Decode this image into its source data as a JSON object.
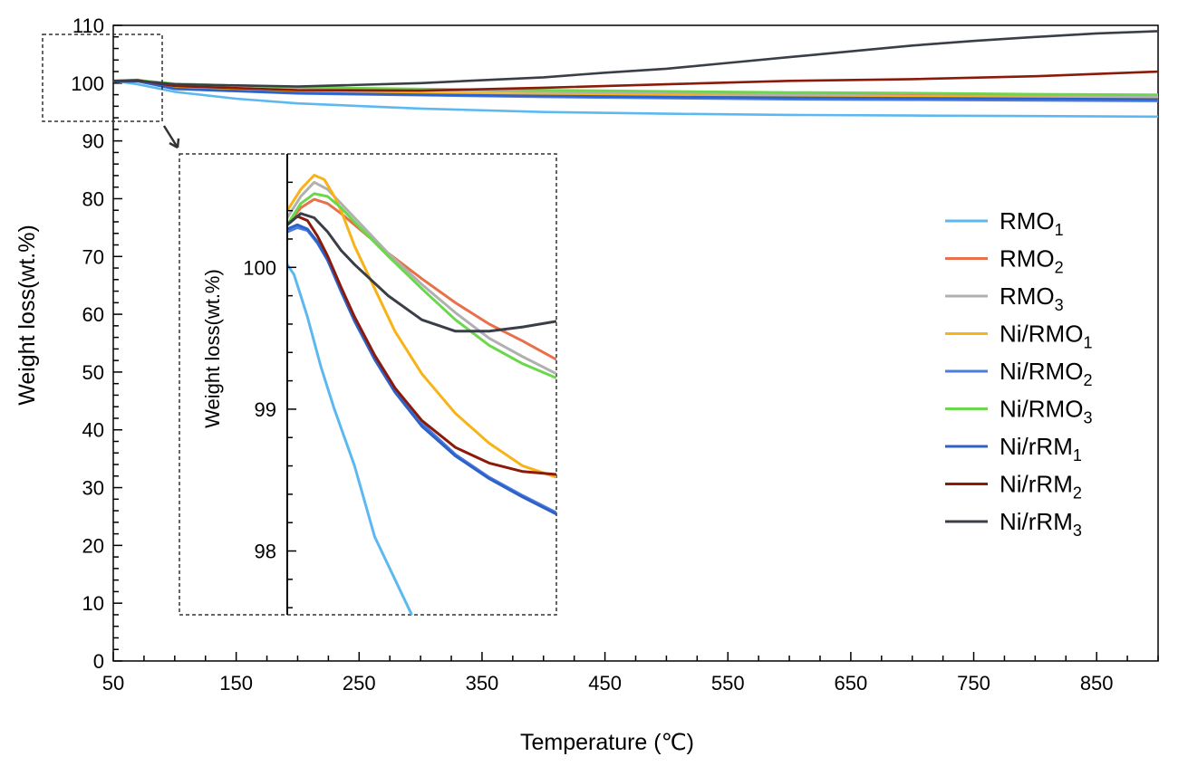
{
  "chart_data": [
    {
      "type": "line",
      "title": "",
      "xlabel": "Temperature (℃)",
      "ylabel": "Weight loss(wt.%)",
      "xlim": [
        50,
        900
      ],
      "ylim": [
        0,
        110
      ],
      "xticks": [
        50,
        150,
        250,
        350,
        450,
        550,
        650,
        750,
        850
      ],
      "yticks": [
        0,
        10,
        20,
        30,
        40,
        50,
        60,
        70,
        80,
        90,
        100,
        110
      ],
      "grid": false,
      "legend_position": "right",
      "series": [
        {
          "name": "RMO",
          "subscript": "1",
          "color": "#5cb8f0",
          "x": [
            50,
            70,
            100,
            150,
            200,
            300,
            400,
            500,
            600,
            700,
            800,
            900
          ],
          "y": [
            100.4,
            99.8,
            98.5,
            97.3,
            96.5,
            95.6,
            95.0,
            94.7,
            94.5,
            94.4,
            94.3,
            94.2
          ]
        },
        {
          "name": "RMO",
          "subscript": "2",
          "color": "#e8704a",
          "x": [
            50,
            70,
            100,
            200,
            300,
            400,
            500,
            600,
            700,
            800,
            900
          ],
          "y": [
            100.4,
            100.5,
            99.9,
            99.3,
            98.9,
            98.6,
            98.3,
            98.1,
            97.9,
            97.8,
            97.7
          ]
        },
        {
          "name": "RMO",
          "subscript": "3",
          "color": "#b0b0b0",
          "x": [
            50,
            70,
            100,
            200,
            300,
            400,
            500,
            600,
            700,
            800,
            900
          ],
          "y": [
            100.4,
            100.5,
            99.9,
            99.2,
            98.8,
            98.5,
            98.2,
            98.0,
            97.8,
            97.7,
            97.6
          ]
        },
        {
          "name": "Ni/RMO",
          "subscript": "1",
          "color": "#f7b317",
          "x": [
            50,
            70,
            100,
            200,
            300,
            400,
            500,
            600,
            700,
            800,
            900
          ],
          "y": [
            100.4,
            100.6,
            99.3,
            98.6,
            98.3,
            98.1,
            97.9,
            97.7,
            97.6,
            97.5,
            97.4
          ]
        },
        {
          "name": "Ni/RMO",
          "subscript": "2",
          "color": "#4a7de0",
          "x": [
            50,
            70,
            100,
            200,
            300,
            400,
            500,
            600,
            700,
            800,
            900
          ],
          "y": [
            100.3,
            100.4,
            99.0,
            98.2,
            97.9,
            97.6,
            97.4,
            97.2,
            97.1,
            97.0,
            96.9
          ]
        },
        {
          "name": "Ni/RMO",
          "subscript": "3",
          "color": "#6ad84a",
          "x": [
            50,
            70,
            100,
            200,
            300,
            400,
            500,
            600,
            700,
            800,
            900
          ],
          "y": [
            100.4,
            100.5,
            99.9,
            99.3,
            99.0,
            98.8,
            98.6,
            98.4,
            98.3,
            98.1,
            98.0
          ]
        },
        {
          "name": "Ni/rRM",
          "subscript": "1",
          "color": "#2e62c8",
          "x": [
            50,
            70,
            100,
            200,
            300,
            400,
            500,
            600,
            700,
            800,
            900
          ],
          "y": [
            100.3,
            100.3,
            99.0,
            98.3,
            98.0,
            97.8,
            97.6,
            97.5,
            97.4,
            97.3,
            97.2
          ]
        },
        {
          "name": "Ni/rRM",
          "subscript": "2",
          "color": "#8b1a0a",
          "x": [
            50,
            70,
            100,
            200,
            300,
            400,
            500,
            600,
            700,
            800,
            900
          ],
          "y": [
            100.4,
            100.5,
            99.5,
            98.8,
            98.7,
            99.2,
            99.8,
            100.4,
            100.7,
            101.2,
            102.0
          ]
        },
        {
          "name": "Ni/rRM",
          "subscript": "3",
          "color": "#3a3f47",
          "x": [
            50,
            70,
            100,
            200,
            300,
            400,
            450,
            500,
            550,
            600,
            650,
            700,
            750,
            800,
            850,
            900
          ],
          "y": [
            100.4,
            100.4,
            99.8,
            99.4,
            100.0,
            101.0,
            101.8,
            102.5,
            103.5,
            104.5,
            105.5,
            106.5,
            107.3,
            108.0,
            108.6,
            109.0
          ]
        }
      ]
    },
    {
      "type": "line",
      "title": "",
      "xlabel": "",
      "ylabel": "Weight loss(wt.%)",
      "xlim": [
        50,
        90
      ],
      "ylim": [
        97.55,
        100.8
      ],
      "yticks": [
        98,
        99,
        100
      ],
      "grid": false,
      "series": [
        {
          "name": "RMO",
          "subscript": "1",
          "color": "#5cb8f0",
          "x": [
            50,
            51,
            52,
            53,
            55,
            57,
            60,
            63,
            66,
            68.5
          ],
          "y": [
            100.02,
            99.95,
            99.8,
            99.65,
            99.3,
            99.0,
            98.6,
            98.1,
            97.8,
            97.55
          ]
        },
        {
          "name": "RMO",
          "subscript": "2",
          "color": "#e8704a",
          "x": [
            50,
            52,
            54,
            56,
            58,
            60,
            65,
            70,
            75,
            80,
            85,
            90
          ],
          "y": [
            100.3,
            100.42,
            100.48,
            100.45,
            100.38,
            100.3,
            100.1,
            99.92,
            99.75,
            99.6,
            99.48,
            99.35
          ]
        },
        {
          "name": "RMO",
          "subscript": "3",
          "color": "#b0b0b0",
          "x": [
            50,
            52,
            54,
            56,
            58,
            60,
            65,
            70,
            75,
            80,
            85,
            90
          ],
          "y": [
            100.35,
            100.5,
            100.6,
            100.55,
            100.45,
            100.35,
            100.1,
            99.88,
            99.68,
            99.5,
            99.37,
            99.25
          ]
        },
        {
          "name": "Ni/RMO",
          "subscript": "1",
          "color": "#f7b317",
          "x": [
            50,
            52,
            54,
            55.5,
            57,
            58,
            60,
            63,
            66,
            70,
            75,
            80,
            85,
            90
          ],
          "y": [
            100.4,
            100.55,
            100.65,
            100.62,
            100.5,
            100.4,
            100.15,
            99.85,
            99.55,
            99.25,
            98.97,
            98.76,
            98.6,
            98.52
          ]
        },
        {
          "name": "Ni/RMO",
          "subscript": "2",
          "color": "#4a7de0",
          "x": [
            50,
            51.5,
            53,
            54.5,
            56,
            58,
            60,
            63,
            66,
            70,
            75,
            80,
            85,
            90
          ],
          "y": [
            100.25,
            100.28,
            100.26,
            100.17,
            100.05,
            99.85,
            99.65,
            99.38,
            99.15,
            98.9,
            98.68,
            98.52,
            98.39,
            98.27
          ]
        },
        {
          "name": "Ni/RMO",
          "subscript": "3",
          "color": "#6ad84a",
          "x": [
            50,
            52,
            54,
            56,
            58,
            60,
            65,
            70,
            75,
            80,
            85,
            90
          ],
          "y": [
            100.3,
            100.45,
            100.52,
            100.5,
            100.42,
            100.32,
            100.08,
            99.85,
            99.63,
            99.45,
            99.32,
            99.22
          ]
        },
        {
          "name": "Ni/rRM",
          "subscript": "1",
          "color": "#2e62c8",
          "x": [
            50,
            51.5,
            53,
            54.5,
            56,
            58,
            60,
            63,
            66,
            70,
            75,
            80,
            85,
            90
          ],
          "y": [
            100.27,
            100.3,
            100.27,
            100.18,
            100.05,
            99.83,
            99.62,
            99.35,
            99.12,
            98.88,
            98.67,
            98.51,
            98.38,
            98.26
          ]
        },
        {
          "name": "Ni/rRM",
          "subscript": "2",
          "color": "#8b1a0a",
          "x": [
            50,
            51.5,
            53,
            54.5,
            56,
            58,
            60,
            63,
            66,
            70,
            75,
            80,
            85,
            90
          ],
          "y": [
            100.3,
            100.36,
            100.33,
            100.22,
            100.08,
            99.86,
            99.65,
            99.38,
            99.15,
            98.92,
            98.73,
            98.62,
            98.56,
            98.54
          ]
        },
        {
          "name": "Ni/rRM",
          "subscript": "3",
          "color": "#3a3f47",
          "x": [
            50,
            52,
            54,
            56,
            58,
            60,
            65,
            70,
            75,
            80,
            85,
            90
          ],
          "y": [
            100.3,
            100.38,
            100.35,
            100.25,
            100.12,
            100.02,
            99.8,
            99.63,
            99.55,
            99.55,
            99.58,
            99.62
          ]
        }
      ]
    }
  ]
}
